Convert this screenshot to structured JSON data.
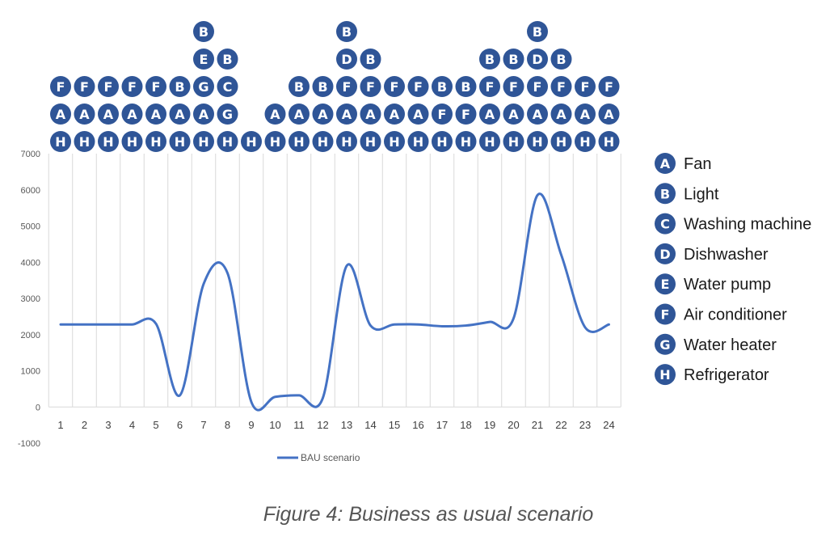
{
  "chart_data": {
    "type": "line",
    "categories": [
      "1",
      "2",
      "3",
      "4",
      "5",
      "6",
      "7",
      "8",
      "9",
      "10",
      "11",
      "12",
      "13",
      "14",
      "15",
      "16",
      "17",
      "18",
      "19",
      "20",
      "21",
      "22",
      "23",
      "24"
    ],
    "series": [
      {
        "name": "BAU scenario",
        "color": "#4472C4",
        "values": [
          2280,
          2280,
          2280,
          2280,
          2300,
          320,
          3400,
          3700,
          140,
          280,
          320,
          250,
          3900,
          2250,
          2280,
          2280,
          2230,
          2250,
          2350,
          2450,
          5850,
          4200,
          2200,
          2280
        ]
      }
    ],
    "ylim": [
      -1000,
      7000
    ],
    "yticks": [
      "-1000",
      "0",
      "1000",
      "2000",
      "3000",
      "4000",
      "5000",
      "6000",
      "7000"
    ],
    "grid": "vertical",
    "legend_position": "bottom",
    "appliance_stacks": [
      [
        "H",
        "A",
        "F"
      ],
      [
        "H",
        "A",
        "F"
      ],
      [
        "H",
        "A",
        "F"
      ],
      [
        "H",
        "A",
        "F"
      ],
      [
        "H",
        "A",
        "F"
      ],
      [
        "H",
        "A",
        "B"
      ],
      [
        "H",
        "A",
        "G",
        "E",
        "B"
      ],
      [
        "H",
        "G",
        "C",
        "B"
      ],
      [
        "H"
      ],
      [
        "H",
        "A"
      ],
      [
        "H",
        "A",
        "B"
      ],
      [
        "H",
        "A",
        "B"
      ],
      [
        "H",
        "A",
        "F",
        "D",
        "B"
      ],
      [
        "H",
        "A",
        "F",
        "B"
      ],
      [
        "H",
        "A",
        "F"
      ],
      [
        "H",
        "A",
        "F"
      ],
      [
        "H",
        "F",
        "B"
      ],
      [
        "H",
        "F",
        "B"
      ],
      [
        "H",
        "A",
        "F",
        "B"
      ],
      [
        "H",
        "A",
        "F",
        "B"
      ],
      [
        "H",
        "A",
        "F",
        "D",
        "B"
      ],
      [
        "H",
        "A",
        "F",
        "B"
      ],
      [
        "H",
        "A",
        "F"
      ],
      [
        "H",
        "A",
        "F"
      ]
    ],
    "appliance_legend": [
      {
        "letter": "A",
        "label": "Fan"
      },
      {
        "letter": "B",
        "label": "Light"
      },
      {
        "letter": "C",
        "label": "Washing machine"
      },
      {
        "letter": "D",
        "label": "Dishwasher"
      },
      {
        "letter": "E",
        "label": "Water pump"
      },
      {
        "letter": "F",
        "label": "Air conditioner"
      },
      {
        "letter": "G",
        "label": "Water heater"
      },
      {
        "letter": "H",
        "label": "Refrigerator"
      }
    ],
    "badge_color": "#2F5597"
  },
  "caption": "Figure 4: Business as usual scenario"
}
